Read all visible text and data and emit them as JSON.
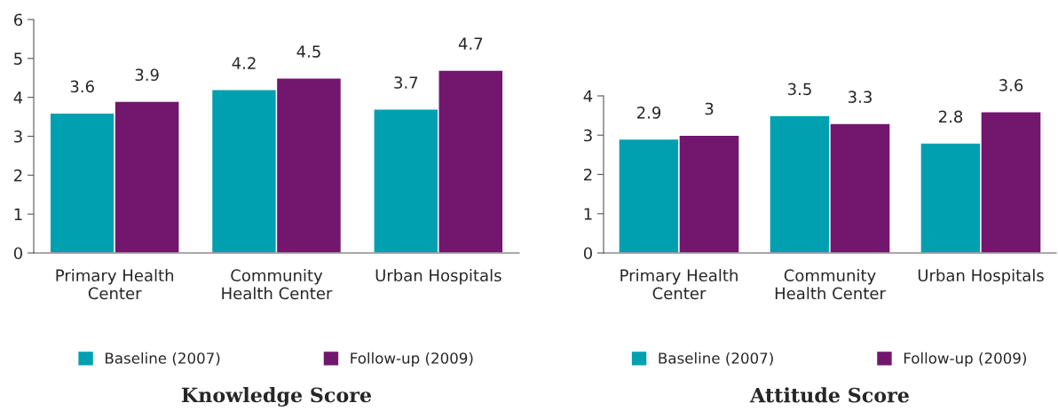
{
  "chart_data": [
    {
      "type": "bar",
      "title": "Knowledge Score",
      "categories": [
        "Primary Health\nCenter",
        "Community\nHealth Center",
        "Urban Hospitals"
      ],
      "series": [
        {
          "name": "Baseline (2007)",
          "color": "#00a0b0",
          "values": [
            3.6,
            4.2,
            3.7
          ]
        },
        {
          "name": "Follow-up (2009)",
          "color": "#72166e",
          "values": [
            3.9,
            4.5,
            4.7
          ]
        }
      ],
      "ylim": [
        0,
        6
      ],
      "yticks": [
        0,
        1,
        2,
        3,
        4,
        5,
        6
      ],
      "data_labels": true,
      "legend": "bottom",
      "grid": false
    },
    {
      "type": "bar",
      "title": "Attitude Score",
      "categories": [
        "Primary Health\nCenter",
        "Community\nHealth Center",
        "Urban Hospitals"
      ],
      "series": [
        {
          "name": "Baseline (2007)",
          "color": "#00a0b0",
          "values": [
            2.9,
            3.5,
            2.8
          ]
        },
        {
          "name": "Follow-up (2009)",
          "color": "#72166e",
          "values": [
            3,
            3.3,
            3.6
          ]
        }
      ],
      "ylim": [
        0,
        4
      ],
      "yticks": [
        0,
        1,
        2,
        3,
        4
      ],
      "data_labels": true,
      "legend": "bottom",
      "grid": false
    }
  ]
}
